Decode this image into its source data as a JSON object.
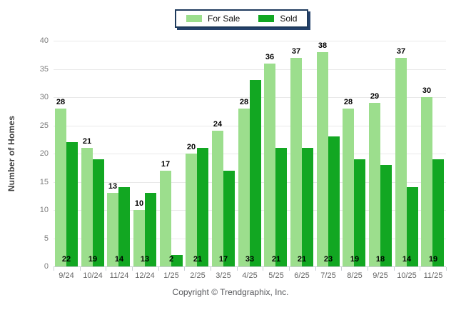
{
  "legend": {
    "items": [
      {
        "label": "For Sale",
        "color": "#9CDE8D"
      },
      {
        "label": "Sold",
        "color": "#12A722"
      }
    ]
  },
  "y_axis": {
    "title": "Number of Homes"
  },
  "footer": {
    "copyright": "Copyright © Trendgraphix, Inc."
  },
  "chart_data": {
    "type": "bar",
    "title": "",
    "categories": [
      "9/24",
      "10/24",
      "11/24",
      "12/24",
      "1/25",
      "2/25",
      "3/25",
      "4/25",
      "5/25",
      "6/25",
      "7/25",
      "8/25",
      "9/25",
      "10/25",
      "11/25"
    ],
    "series": [
      {
        "name": "For Sale",
        "color": "#9CDE8D",
        "values": [
          28,
          21,
          13,
          10,
          17,
          20,
          24,
          28,
          36,
          37,
          38,
          28,
          29,
          37,
          30
        ]
      },
      {
        "name": "Sold",
        "color": "#12A722",
        "values": [
          22,
          19,
          14,
          13,
          2,
          21,
          17,
          33,
          21,
          21,
          23,
          19,
          18,
          14,
          19
        ]
      }
    ],
    "xlabel": "",
    "ylabel": "Number of Homes",
    "ylim": [
      0,
      40
    ],
    "ytick_step": 5,
    "grid": true,
    "legend_position": "top-center",
    "value_label_placement": {
      "for_sale": "above-bar",
      "sold": "at-bar-base"
    }
  }
}
